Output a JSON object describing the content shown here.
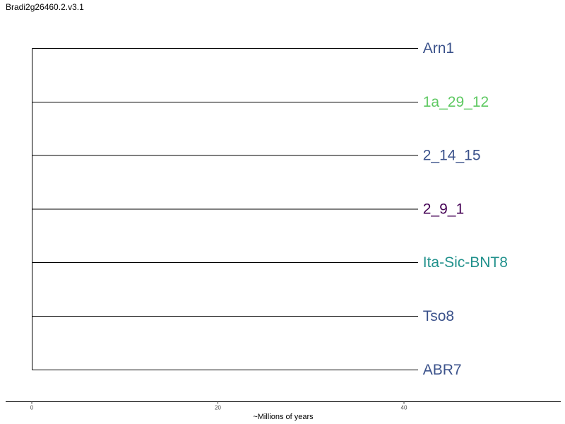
{
  "title": "Bradi2g26460.2.v3.1",
  "chart_data": {
    "type": "dendrogram",
    "title": "Bradi2g26460.2.v3.1",
    "xlabel": "~Millions of years",
    "xlim": [
      0,
      55
    ],
    "xticks": [
      0,
      20,
      40
    ],
    "root_age": 0,
    "tips": [
      {
        "name": "Arn1",
        "branch_length": 41.5,
        "color": "#3b528b"
      },
      {
        "name": "1a_29_12",
        "branch_length": 41.5,
        "color": "#5ec962"
      },
      {
        "name": "2_14_15",
        "branch_length": 41.5,
        "color": "#3b528b"
      },
      {
        "name": "2_9_1",
        "branch_length": 41.5,
        "color": "#440154"
      },
      {
        "name": "Ita-Sic-BNT8",
        "branch_length": 41.5,
        "color": "#21918c"
      },
      {
        "name": "Tso8",
        "branch_length": 41.5,
        "color": "#3b528b"
      },
      {
        "name": "ABR7",
        "branch_length": 41.5,
        "color": "#3b528b"
      }
    ]
  }
}
